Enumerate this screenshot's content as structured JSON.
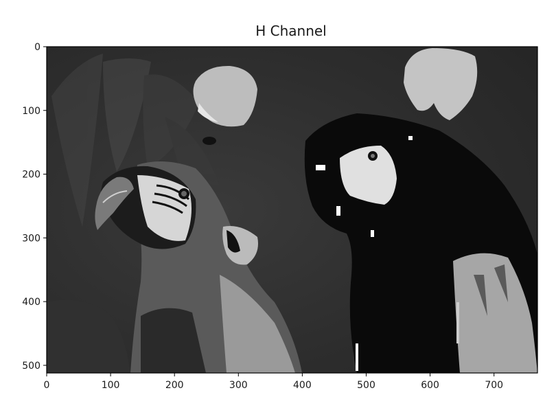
{
  "chart_data": {
    "type": "heatmap",
    "title": "H Channel",
    "xlabel": "",
    "ylabel": "",
    "colormap": "gray",
    "image_size": {
      "width": 768,
      "height": 512
    },
    "xlim": [
      0,
      768
    ],
    "ylim": [
      512,
      0
    ],
    "x_ticks": [
      0,
      100,
      200,
      300,
      400,
      500,
      600,
      700
    ],
    "y_ticks": [
      0,
      100,
      200,
      300,
      400,
      500
    ],
    "grid": false,
    "legend": "none"
  }
}
